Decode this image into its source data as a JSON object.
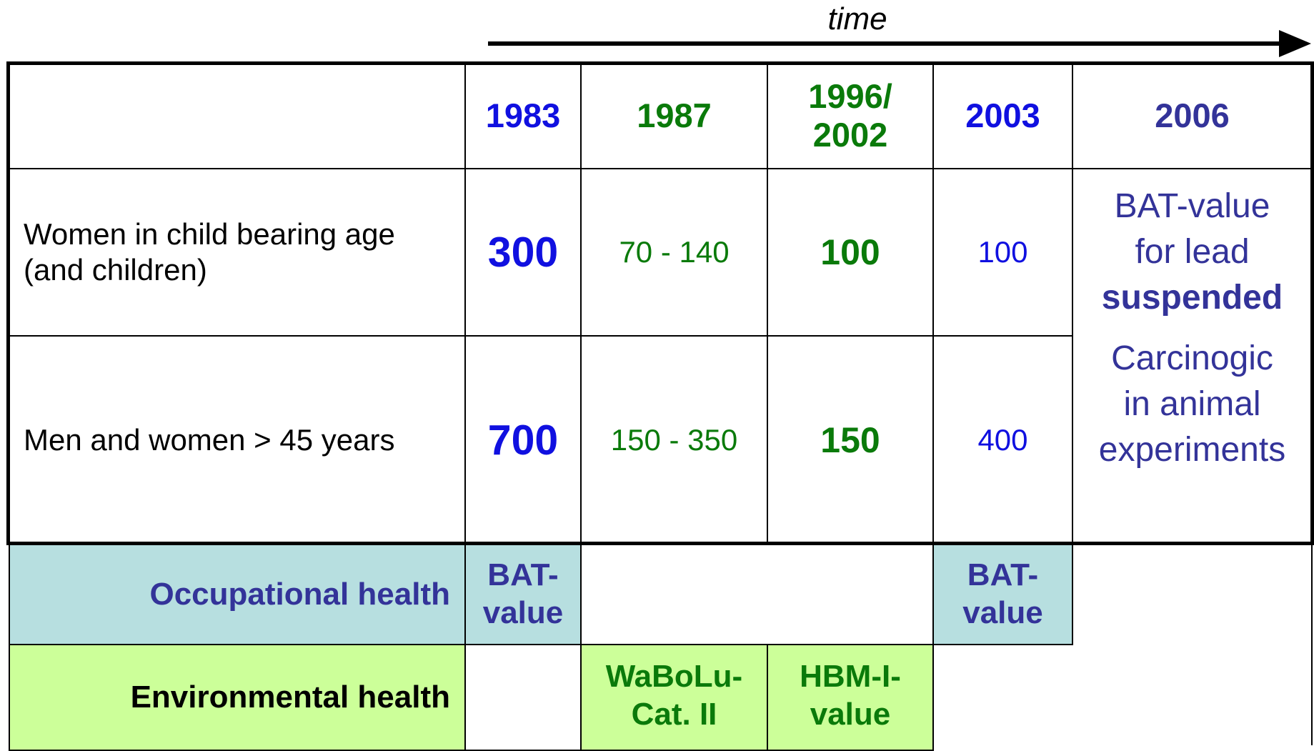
{
  "header": {
    "time": "time"
  },
  "table": {
    "columns": [
      [
        "1983"
      ],
      [
        "1987"
      ],
      [
        "1996/",
        "2002"
      ],
      [
        "2003"
      ],
      [
        "2006"
      ]
    ],
    "rows": [
      {
        "label": [
          "Women in child bearing age",
          "(and children)"
        ],
        "cells": [
          "300",
          "70 - 140",
          "100",
          "100"
        ]
      },
      {
        "label": [
          "Men and women > 45 years"
        ],
        "cells": [
          "700",
          "150 - 350",
          "150",
          "400"
        ]
      }
    ],
    "note": {
      "lines": [
        "BAT-value",
        "for lead"
      ],
      "bold": "suspended",
      "extra": [
        "Carcinogic",
        "in animal",
        "experiments"
      ]
    }
  },
  "occupational": {
    "label": "Occupational health",
    "c1983": [
      "BAT-",
      "value"
    ],
    "c2003": [
      "BAT-",
      "value"
    ]
  },
  "environmental": {
    "label": "Environmental health",
    "c1987": [
      "WaBoLu-",
      "Cat. II"
    ],
    "c1996": [
      "HBM-I-",
      "value"
    ]
  }
}
